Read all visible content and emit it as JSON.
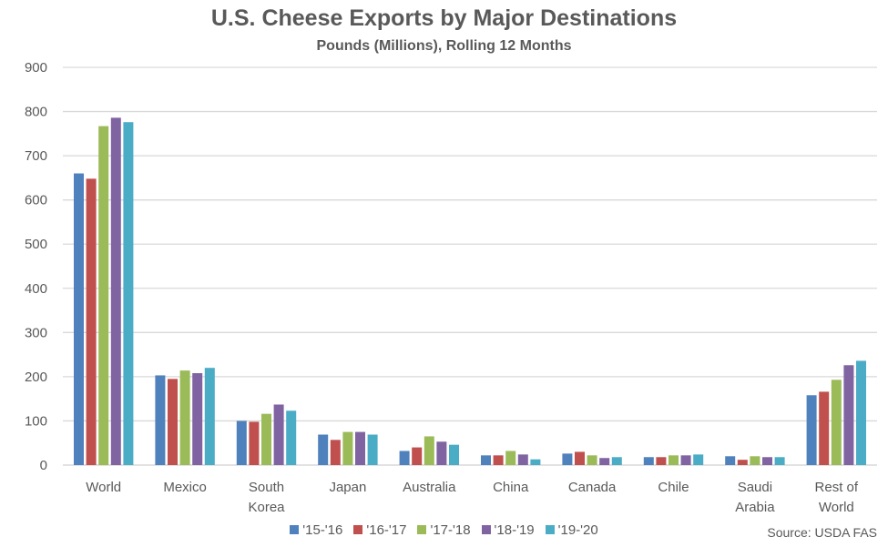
{
  "chart_data": {
    "type": "bar",
    "title": "U.S. Cheese Exports by Major Destinations",
    "subtitle": "Pounds (Millions), Rolling 12 Months",
    "xlabel": "",
    "ylabel": "",
    "ylim": [
      0,
      900
    ],
    "yticks": [
      0,
      100,
      200,
      300,
      400,
      500,
      600,
      700,
      800,
      900
    ],
    "grid": true,
    "legend_position": "bottom",
    "categories": [
      [
        "World"
      ],
      [
        "Mexico"
      ],
      [
        "South",
        "Korea"
      ],
      [
        "Japan"
      ],
      [
        "Australia"
      ],
      [
        "China"
      ],
      [
        "Canada"
      ],
      [
        "Chile"
      ],
      [
        "Saudi",
        "Arabia"
      ],
      [
        "Rest of",
        "World"
      ]
    ],
    "series": [
      {
        "name": "'15-'16",
        "color": "#4F81BD",
        "values": [
          660,
          203,
          100,
          69,
          32,
          22,
          26,
          18,
          20,
          158
        ]
      },
      {
        "name": "'16-'17",
        "color": "#C0504D",
        "values": [
          648,
          195,
          98,
          57,
          40,
          22,
          30,
          18,
          12,
          166
        ]
      },
      {
        "name": "'17-'18",
        "color": "#9BBB59",
        "values": [
          767,
          214,
          116,
          75,
          65,
          32,
          22,
          22,
          20,
          193
        ]
      },
      {
        "name": "'18-'19",
        "color": "#8064A2",
        "values": [
          786,
          208,
          137,
          75,
          53,
          24,
          16,
          22,
          18,
          226
        ]
      },
      {
        "name": "'19-'20",
        "color": "#4BACC6",
        "values": [
          776,
          220,
          123,
          69,
          46,
          13,
          18,
          24,
          18,
          236
        ]
      }
    ],
    "source": "Source: USDA FAS"
  }
}
